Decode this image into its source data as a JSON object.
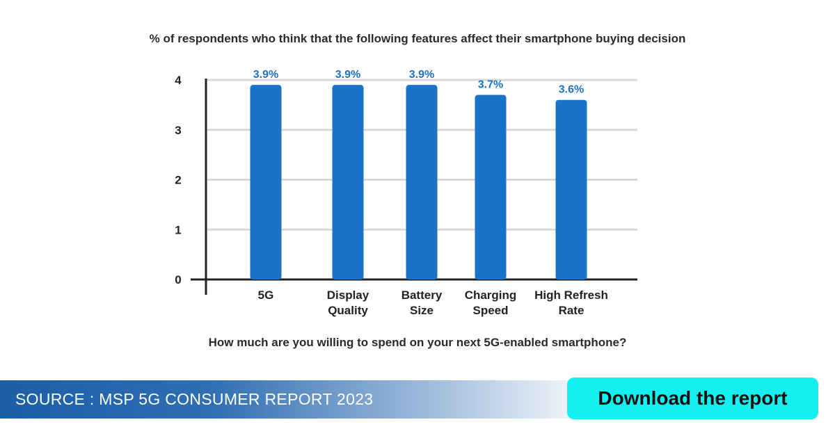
{
  "chart_data": {
    "type": "bar",
    "title": "% of respondents who think that the following features affect their smartphone buying decision",
    "categories": [
      [
        "5G"
      ],
      [
        "Display",
        "Quality"
      ],
      [
        "Battery",
        "Size"
      ],
      [
        "Charging",
        "Speed"
      ],
      [
        "High Refresh",
        "Rate"
      ]
    ],
    "values": [
      3.9,
      3.9,
      3.9,
      3.7,
      3.6
    ],
    "data_labels": [
      "3.9%",
      "3.9%",
      "3.9%",
      "3.7%",
      "3.6%"
    ],
    "yticks": [
      "0",
      "1",
      "2",
      "3",
      "4"
    ],
    "ylim": [
      0,
      4.1
    ],
    "grid": true,
    "bar_color": "#1a73c8",
    "label_color": "#1a73c8"
  },
  "subtitle": "How much are you willing to spend on your next 5G-enabled smartphone?",
  "footer": {
    "source": "SOURCE : MSP 5G CONSUMER REPORT 2023",
    "download_label": "Download the report"
  },
  "colors": {
    "accent": "#14f0f0",
    "brand": "#1b5fa8"
  }
}
